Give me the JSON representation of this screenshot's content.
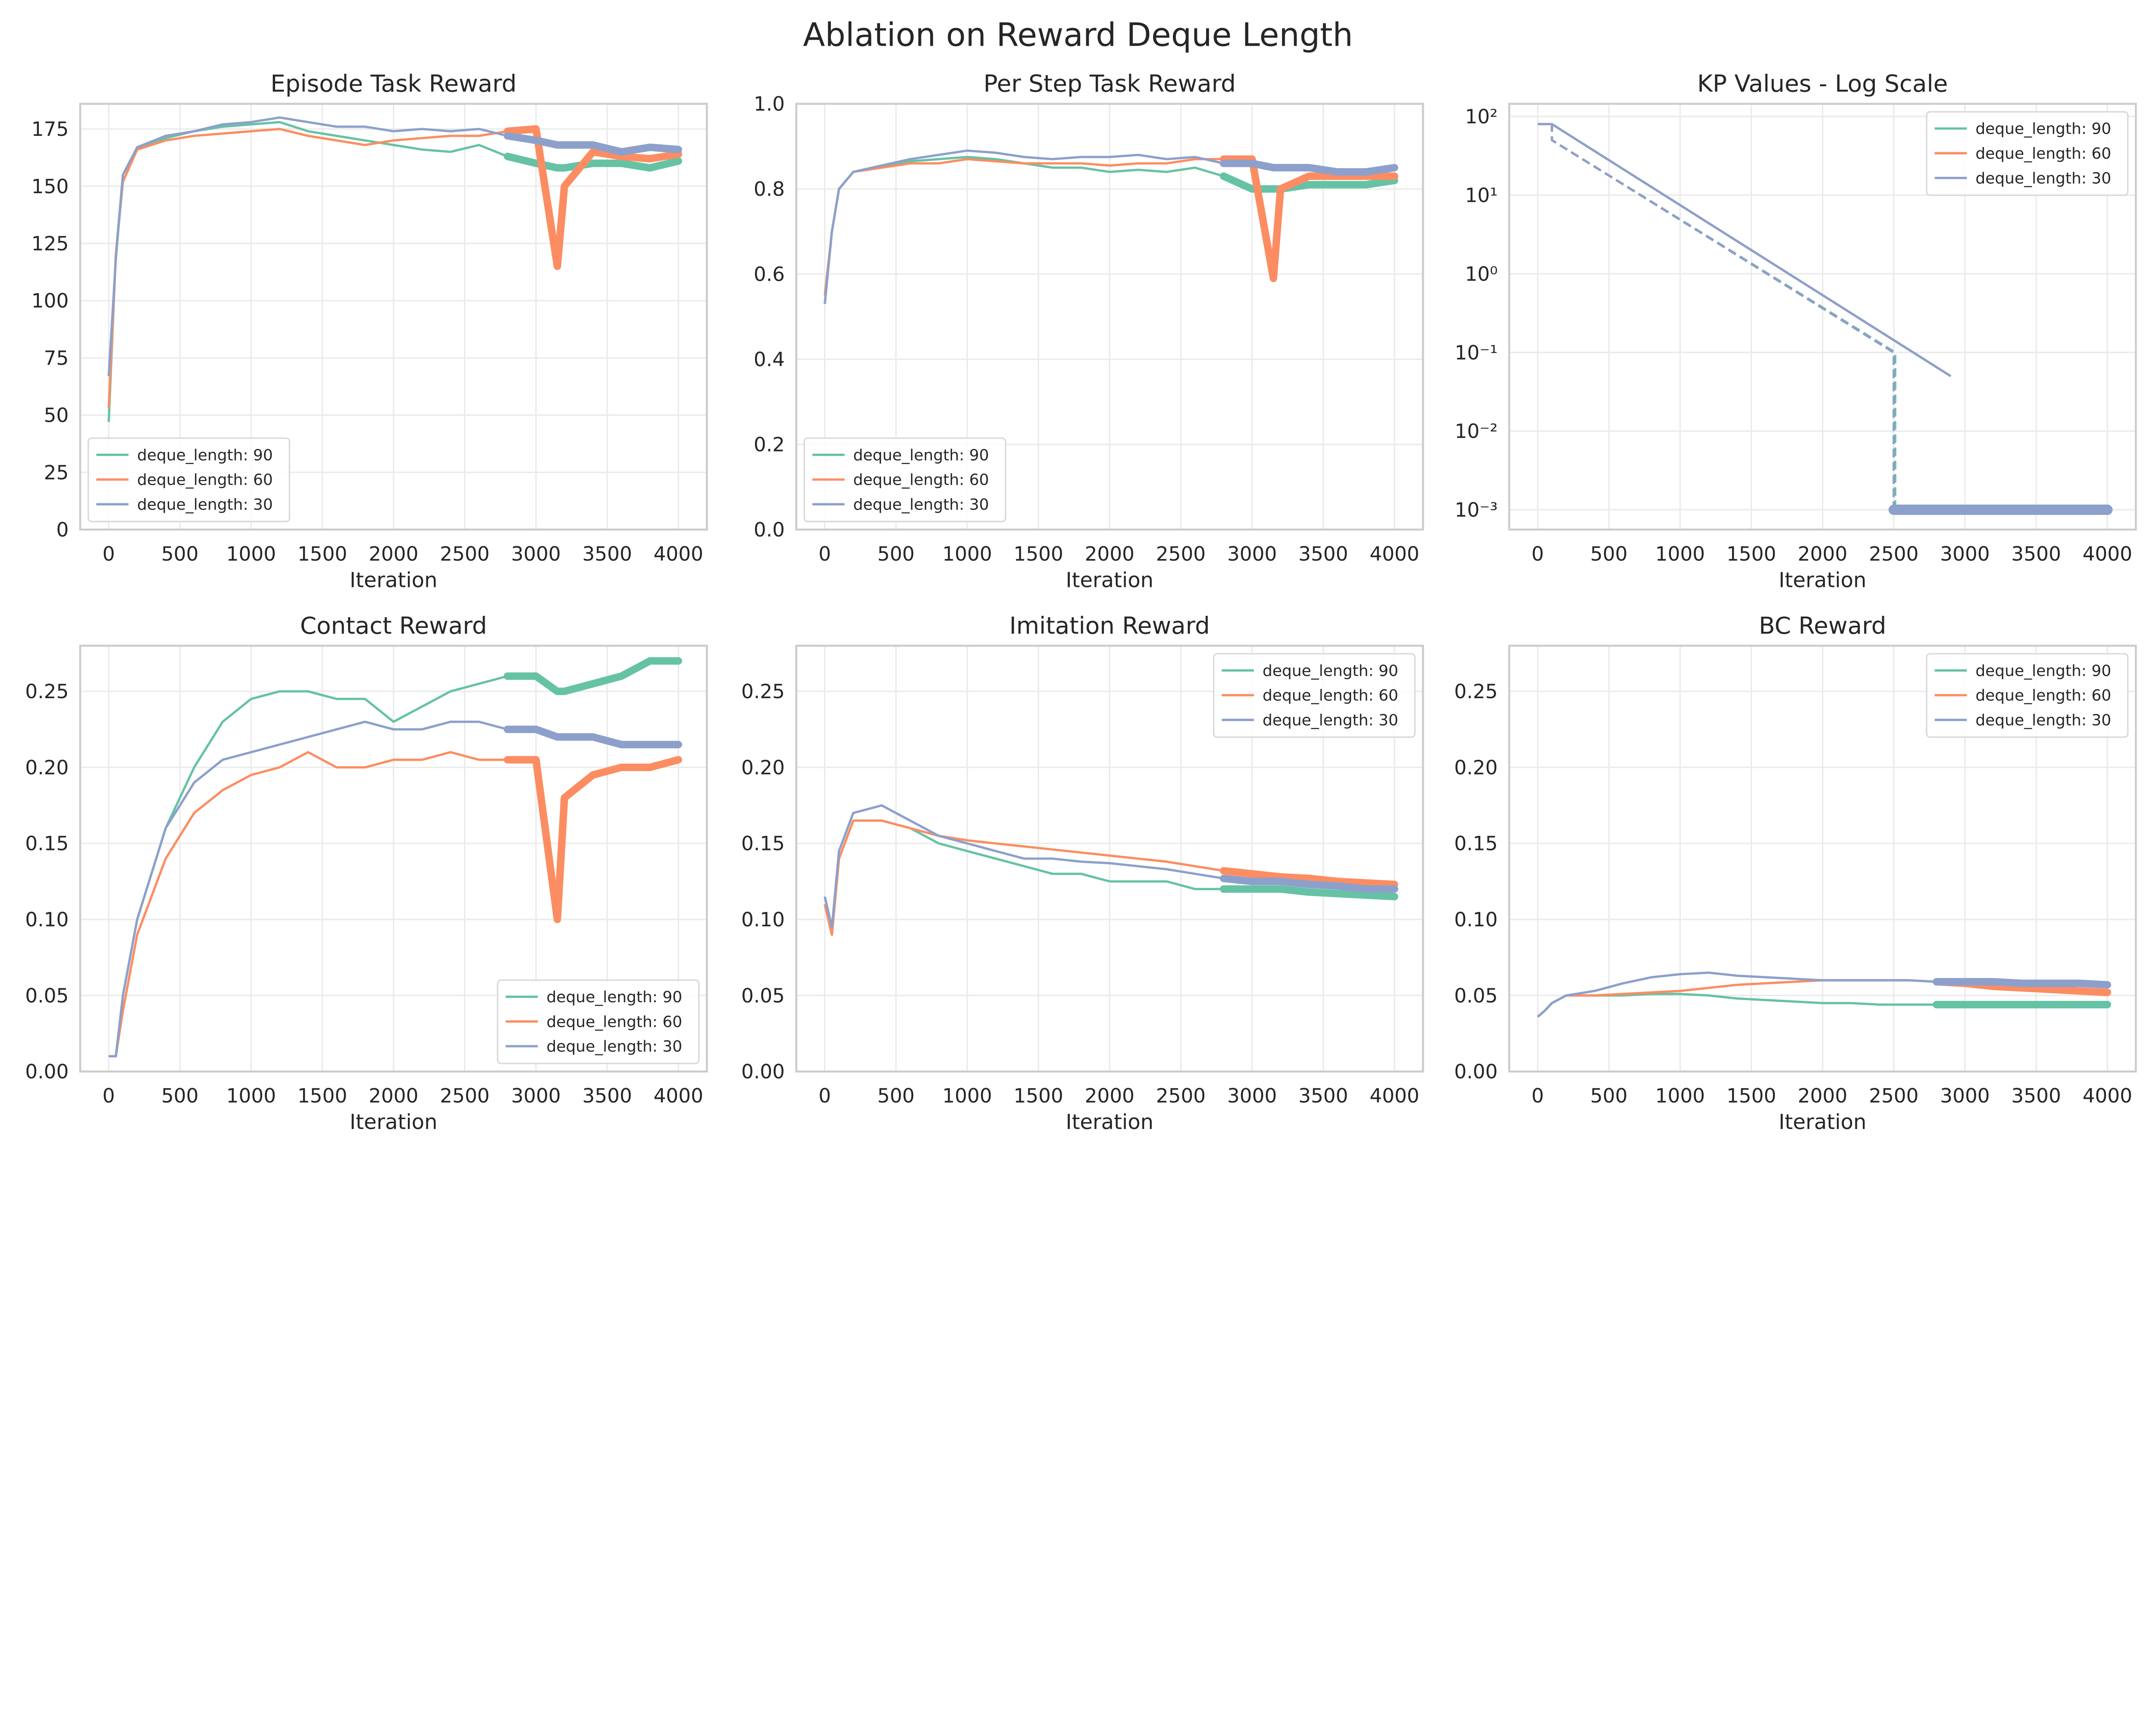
{
  "suptitle": "Ablation on Reward Deque Length",
  "colors": {
    "deque_length: 90": "#66c2a5",
    "deque_length: 60": "#fc8d62",
    "deque_length: 30": "#8da0cb"
  },
  "chart_data": [
    {
      "type": "line",
      "title": "Episode Task Reward",
      "xlabel": "Iteration",
      "ylabel": "",
      "xlim": [
        -200,
        4200
      ],
      "ylim": [
        0,
        186
      ],
      "scale": "linear",
      "grid": true,
      "legend": "bottom-left",
      "xticks": [
        0,
        500,
        1000,
        1500,
        2000,
        2500,
        3000,
        3500,
        4000
      ],
      "xtick_labels": [
        "0",
        "500",
        "1000",
        "1500",
        "2000",
        "2500",
        "3000",
        "3500",
        "4000"
      ],
      "yticks": [
        0,
        25,
        50,
        75,
        100,
        125,
        150,
        175
      ],
      "ytick_labels": [
        "0",
        "25",
        "50",
        "75",
        "100",
        "125",
        "150",
        "175"
      ],
      "x": [
        0,
        50,
        100,
        200,
        400,
        600,
        800,
        1000,
        1200,
        1400,
        1600,
        1800,
        2000,
        2200,
        2400,
        2600,
        2800,
        3000,
        3150,
        3200,
        3400,
        3600,
        3800,
        4000
      ],
      "series": [
        {
          "name": "deque_length: 90",
          "values": [
            47,
            120,
            155,
            166,
            171,
            174,
            176,
            177,
            178,
            174,
            172,
            170,
            168,
            166,
            165,
            168,
            163,
            160,
            158,
            158,
            160,
            160,
            158,
            161
          ]
        },
        {
          "name": "deque_length: 60",
          "values": [
            53,
            120,
            152,
            166,
            170,
            172,
            173,
            174,
            175,
            172,
            170,
            168,
            170,
            171,
            172,
            172,
            174,
            175,
            115,
            150,
            165,
            163,
            162,
            164
          ]
        },
        {
          "name": "deque_length: 30",
          "values": [
            67,
            118,
            155,
            167,
            172,
            174,
            177,
            178,
            180,
            178,
            176,
            176,
            174,
            175,
            174,
            175,
            172,
            170,
            168,
            168,
            168,
            165,
            167,
            166
          ]
        }
      ]
    },
    {
      "type": "line",
      "title": "Per Step Task Reward",
      "xlabel": "Iteration",
      "ylabel": "",
      "xlim": [
        -200,
        4200
      ],
      "ylim": [
        0,
        1.0
      ],
      "scale": "linear",
      "grid": true,
      "legend": "bottom-left",
      "xticks": [
        0,
        500,
        1000,
        1500,
        2000,
        2500,
        3000,
        3500,
        4000
      ],
      "xtick_labels": [
        "0",
        "500",
        "1000",
        "1500",
        "2000",
        "2500",
        "3000",
        "3500",
        "4000"
      ],
      "yticks": [
        0,
        0.2,
        0.4,
        0.6,
        0.8,
        1.0
      ],
      "ytick_labels": [
        "0.0",
        "0.2",
        "0.4",
        "0.6",
        "0.8",
        "1.0"
      ],
      "x": [
        0,
        50,
        100,
        200,
        400,
        600,
        800,
        1000,
        1200,
        1400,
        1600,
        1800,
        2000,
        2200,
        2400,
        2600,
        2800,
        3000,
        3150,
        3200,
        3400,
        3600,
        3800,
        4000
      ],
      "series": [
        {
          "name": "deque_length: 90",
          "values": [
            0.53,
            0.7,
            0.8,
            0.84,
            0.855,
            0.865,
            0.87,
            0.875,
            0.87,
            0.86,
            0.85,
            0.85,
            0.84,
            0.845,
            0.84,
            0.85,
            0.83,
            0.8,
            0.8,
            0.8,
            0.81,
            0.81,
            0.81,
            0.82
          ]
        },
        {
          "name": "deque_length: 60",
          "values": [
            0.55,
            0.7,
            0.8,
            0.84,
            0.85,
            0.86,
            0.86,
            0.87,
            0.865,
            0.86,
            0.86,
            0.86,
            0.855,
            0.86,
            0.86,
            0.87,
            0.87,
            0.87,
            0.59,
            0.8,
            0.83,
            0.83,
            0.83,
            0.83
          ]
        },
        {
          "name": "deque_length: 30",
          "values": [
            0.53,
            0.7,
            0.8,
            0.84,
            0.855,
            0.87,
            0.88,
            0.89,
            0.885,
            0.875,
            0.87,
            0.875,
            0.875,
            0.88,
            0.87,
            0.875,
            0.86,
            0.86,
            0.85,
            0.85,
            0.85,
            0.84,
            0.84,
            0.85
          ]
        }
      ]
    },
    {
      "type": "line",
      "title": "KP Values - Log Scale",
      "xlabel": "Iteration",
      "ylabel": "",
      "xlim": [
        -200,
        4200
      ],
      "ylim": [
        0.00056,
        145
      ],
      "scale": "log",
      "grid": true,
      "legend": "top-right",
      "xticks": [
        0,
        500,
        1000,
        1500,
        2000,
        2500,
        3000,
        3500,
        4000
      ],
      "xtick_labels": [
        "0",
        "500",
        "1000",
        "1500",
        "2000",
        "2500",
        "3000",
        "3500",
        "4000"
      ],
      "yticks": [
        100,
        10,
        1,
        0.1,
        0.01,
        0.001
      ],
      "ytick_labels": [
        "10²",
        "10¹",
        "10⁰",
        "10⁻¹",
        "10⁻²",
        "10⁻³"
      ],
      "series": [
        {
          "name": "deque_length: 90",
          "style": "solid",
          "x": [
            0,
            100,
            2920
          ],
          "values": [
            80,
            80,
            0.05
          ]
        },
        {
          "name": "deque_length: 60",
          "style": "solid",
          "x": [
            0,
            100,
            2900
          ],
          "values": [
            80,
            80,
            0.05
          ]
        },
        {
          "name": "deque_length: 30",
          "style": "solid",
          "x": [
            0,
            100,
            2900
          ],
          "values": [
            80,
            80,
            0.05
          ]
        },
        {
          "name": "deque_length: 90",
          "style": "dashed",
          "x": [
            0,
            100,
            100,
            2510,
            2510,
            4000
          ],
          "values": [
            80,
            80,
            50,
            0.1,
            0.001,
            0.001
          ]
        },
        {
          "name": "deque_length: 60",
          "style": "dashed",
          "x": [
            0,
            100,
            100,
            2500,
            2500,
            4000
          ],
          "values": [
            80,
            80,
            50,
            0.1,
            0.001,
            0.001
          ]
        },
        {
          "name": "deque_length: 30",
          "style": "dashed",
          "x": [
            0,
            100,
            100,
            2500,
            2500,
            4000
          ],
          "values": [
            80,
            80,
            50,
            0.1,
            0.001,
            0.001
          ]
        }
      ]
    },
    {
      "type": "line",
      "title": "Contact Reward",
      "xlabel": "Iteration",
      "ylabel": "",
      "xlim": [
        -200,
        4200
      ],
      "ylim": [
        0,
        0.28
      ],
      "scale": "linear",
      "grid": true,
      "legend": "bottom-right",
      "xticks": [
        0,
        500,
        1000,
        1500,
        2000,
        2500,
        3000,
        3500,
        4000
      ],
      "xtick_labels": [
        "0",
        "500",
        "1000",
        "1500",
        "2000",
        "2500",
        "3000",
        "3500",
        "4000"
      ],
      "yticks": [
        0,
        0.05,
        0.1,
        0.15,
        0.2,
        0.25
      ],
      "ytick_labels": [
        "0.00",
        "0.05",
        "0.10",
        "0.15",
        "0.20",
        "0.25"
      ],
      "x": [
        0,
        50,
        100,
        200,
        400,
        600,
        800,
        1000,
        1200,
        1400,
        1600,
        1800,
        2000,
        2200,
        2400,
        2600,
        2800,
        3000,
        3150,
        3200,
        3400,
        3600,
        3800,
        4000
      ],
      "series": [
        {
          "name": "deque_length: 90",
          "values": [
            0.01,
            0.01,
            0.05,
            0.1,
            0.16,
            0.2,
            0.23,
            0.245,
            0.25,
            0.25,
            0.245,
            0.245,
            0.23,
            0.24,
            0.25,
            0.255,
            0.26,
            0.26,
            0.25,
            0.25,
            0.255,
            0.26,
            0.27,
            0.27
          ]
        },
        {
          "name": "deque_length: 60",
          "values": [
            0.01,
            0.01,
            0.04,
            0.09,
            0.14,
            0.17,
            0.185,
            0.195,
            0.2,
            0.21,
            0.2,
            0.2,
            0.205,
            0.205,
            0.21,
            0.205,
            0.205,
            0.205,
            0.1,
            0.18,
            0.195,
            0.2,
            0.2,
            0.205
          ]
        },
        {
          "name": "deque_length: 30",
          "values": [
            0.01,
            0.01,
            0.05,
            0.1,
            0.16,
            0.19,
            0.205,
            0.21,
            0.215,
            0.22,
            0.225,
            0.23,
            0.225,
            0.225,
            0.23,
            0.23,
            0.225,
            0.225,
            0.22,
            0.22,
            0.22,
            0.215,
            0.215,
            0.215
          ]
        }
      ]
    },
    {
      "type": "line",
      "title": "Imitation Reward",
      "xlabel": "Iteration",
      "ylabel": "",
      "xlim": [
        -200,
        4200
      ],
      "ylim": [
        0,
        0.28
      ],
      "scale": "linear",
      "grid": true,
      "legend": "top-right",
      "xticks": [
        0,
        500,
        1000,
        1500,
        2000,
        2500,
        3000,
        3500,
        4000
      ],
      "xtick_labels": [
        "0",
        "500",
        "1000",
        "1500",
        "2000",
        "2500",
        "3000",
        "3500",
        "4000"
      ],
      "yticks": [
        0,
        0.05,
        0.1,
        0.15,
        0.2,
        0.25
      ],
      "ytick_labels": [
        "0.00",
        "0.05",
        "0.10",
        "0.15",
        "0.20",
        "0.25"
      ],
      "x": [
        0,
        50,
        100,
        200,
        400,
        600,
        800,
        1000,
        1200,
        1400,
        1600,
        1800,
        2000,
        2200,
        2400,
        2600,
        2800,
        3000,
        3200,
        3400,
        3600,
        3800,
        4000
      ],
      "series": [
        {
          "name": "deque_length: 90",
          "values": [
            0.11,
            0.09,
            0.14,
            0.165,
            0.165,
            0.16,
            0.15,
            0.145,
            0.14,
            0.135,
            0.13,
            0.13,
            0.125,
            0.125,
            0.125,
            0.12,
            0.12,
            0.12,
            0.12,
            0.118,
            0.117,
            0.116,
            0.115
          ]
        },
        {
          "name": "deque_length: 60",
          "values": [
            0.11,
            0.09,
            0.14,
            0.165,
            0.165,
            0.16,
            0.155,
            0.152,
            0.15,
            0.148,
            0.146,
            0.144,
            0.142,
            0.14,
            0.138,
            0.135,
            0.132,
            0.13,
            0.128,
            0.127,
            0.125,
            0.124,
            0.123
          ]
        },
        {
          "name": "deque_length: 30",
          "values": [
            0.115,
            0.095,
            0.145,
            0.17,
            0.175,
            0.165,
            0.155,
            0.15,
            0.145,
            0.14,
            0.14,
            0.138,
            0.137,
            0.135,
            0.133,
            0.13,
            0.127,
            0.125,
            0.125,
            0.123,
            0.122,
            0.12,
            0.12
          ]
        }
      ]
    },
    {
      "type": "line",
      "title": "BC Reward",
      "xlabel": "Iteration",
      "ylabel": "",
      "xlim": [
        -200,
        4200
      ],
      "ylim": [
        0,
        0.28
      ],
      "scale": "linear",
      "grid": true,
      "legend": "top-right",
      "xticks": [
        0,
        500,
        1000,
        1500,
        2000,
        2500,
        3000,
        3500,
        4000
      ],
      "xtick_labels": [
        "0",
        "500",
        "1000",
        "1500",
        "2000",
        "2500",
        "3000",
        "3500",
        "4000"
      ],
      "yticks": [
        0,
        0.05,
        0.1,
        0.15,
        0.2,
        0.25
      ],
      "ytick_labels": [
        "0.00",
        "0.05",
        "0.10",
        "0.15",
        "0.20",
        "0.25"
      ],
      "x": [
        0,
        50,
        100,
        200,
        400,
        600,
        800,
        1000,
        1200,
        1400,
        1600,
        1800,
        2000,
        2200,
        2400,
        2600,
        2800,
        3000,
        3200,
        3400,
        3600,
        3800,
        4000
      ],
      "series": [
        {
          "name": "deque_length: 90",
          "values": [
            0.036,
            0.04,
            0.045,
            0.05,
            0.05,
            0.05,
            0.051,
            0.051,
            0.05,
            0.048,
            0.047,
            0.046,
            0.045,
            0.045,
            0.044,
            0.044,
            0.044,
            0.044,
            0.044,
            0.044,
            0.044,
            0.044,
            0.044
          ]
        },
        {
          "name": "deque_length: 60",
          "values": [
            0.036,
            0.04,
            0.045,
            0.05,
            0.05,
            0.051,
            0.052,
            0.053,
            0.055,
            0.057,
            0.058,
            0.059,
            0.06,
            0.06,
            0.06,
            0.06,
            0.059,
            0.058,
            0.056,
            0.055,
            0.054,
            0.053,
            0.052
          ]
        },
        {
          "name": "deque_length: 30",
          "values": [
            0.036,
            0.04,
            0.045,
            0.05,
            0.053,
            0.058,
            0.062,
            0.064,
            0.065,
            0.063,
            0.062,
            0.061,
            0.06,
            0.06,
            0.06,
            0.06,
            0.059,
            0.059,
            0.059,
            0.058,
            0.058,
            0.058,
            0.057
          ]
        }
      ]
    }
  ]
}
